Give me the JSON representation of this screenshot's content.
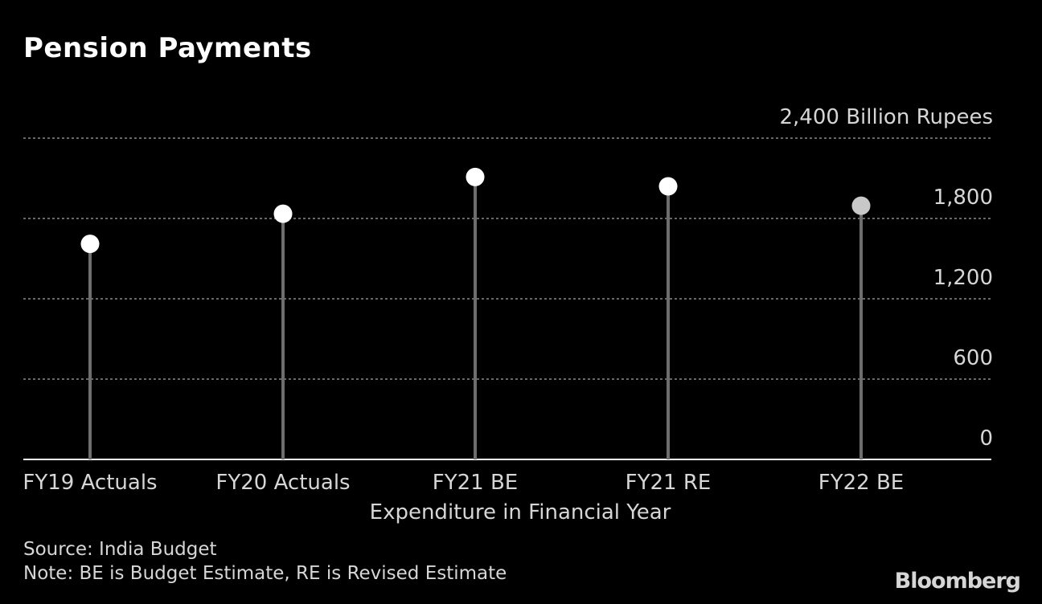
{
  "title": "Pension Payments",
  "source": "Source: India Budget",
  "note": "Note: BE is Budget Estimate, RE is Revised Estimate",
  "logo": "Bloomberg",
  "colors": {
    "background": "#000000",
    "grid": "#8a8a8a",
    "stem": "#6e6e6e",
    "dot_actual": "#ffffff",
    "dot_estimate": "#c8c8c8",
    "text": "#d6d6d6"
  },
  "chart_data": {
    "type": "lollipop",
    "xlabel": "Expenditure in Financial Year",
    "ylabel": "",
    "y_unit": "Billion Rupees",
    "ylim": [
      0,
      2400
    ],
    "y_ticks": [
      0,
      600,
      1200,
      1800,
      2400
    ],
    "y_tick_labels": [
      "0",
      "600",
      "1,200",
      "1,800",
      "2,400"
    ],
    "top_tick_label": "2,400 Billion Rupees",
    "grid": true,
    "categories": [
      "FY19 Actuals",
      "FY20 Actuals",
      "FY21 BE",
      "FY21 RE",
      "FY22 BE"
    ],
    "values": [
      1610,
      1835,
      2110,
      2040,
      1895
    ],
    "highlight": [
      "normal",
      "normal",
      "normal",
      "normal",
      "muted"
    ]
  }
}
